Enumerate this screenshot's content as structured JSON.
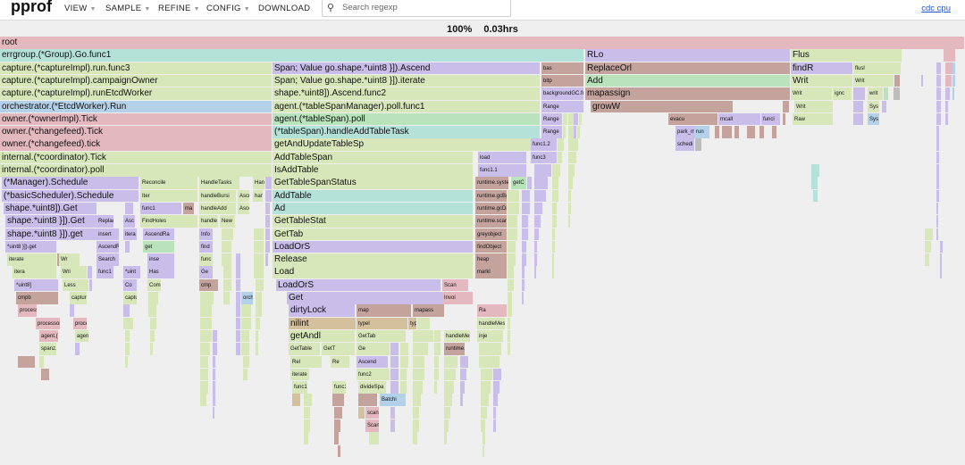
{
  "app": {
    "name": "pprof"
  },
  "menu": [
    {
      "label": "VIEW"
    },
    {
      "label": "SAMPLE"
    },
    {
      "label": "REFINE"
    },
    {
      "label": "CONFIG"
    },
    {
      "label": "DOWNLOAD"
    }
  ],
  "search": {
    "placeholder": "Search regexp"
  },
  "profile_link": "cdc cpu",
  "status": {
    "percent": "100%",
    "time": "0.03hrs"
  },
  "colors": {
    "pink": "#e3b8bf",
    "teal": "#b4e2d9",
    "yellowgreen": "#d7e7b9",
    "blue": "#b3d1e8",
    "purple": "#c9bde9",
    "green": "#b8e3bb",
    "brown": "#c4a39d",
    "tan": "#d4c09d",
    "gray": "#bdbdbd"
  },
  "frames": [
    {
      "label": "root",
      "c": "pink"
    },
    {
      "label": "errgroup.(*Group).Go.func1",
      "c": "teal"
    },
    {
      "label": "capture.(*captureImpl).run.func3",
      "c": "yellowgreen"
    },
    {
      "label": "capture.(*captureImpl).campaignOwner",
      "c": "yellowgreen"
    },
    {
      "label": "capture.(*captureImpl).runEtcdWorker",
      "c": "yellowgreen"
    },
    {
      "label": "orchestrator.(*EtcdWorker).Run",
      "c": "blue"
    },
    {
      "label": "owner.(*ownerImpl).Tick",
      "c": "pink"
    },
    {
      "label": "owner.(*changefeed).Tick",
      "c": "pink"
    },
    {
      "label": "owner.(*changefeed).tick",
      "c": "pink"
    },
    {
      "label": "internal.(*coordinator).Tick",
      "c": "yellowgreen"
    },
    {
      "label": "internal.(*coordinator).poll",
      "c": "yellowgreen"
    },
    {
      "label": "(*Manager).Schedule",
      "c": "purple"
    },
    {
      "label": "Reconcile",
      "c": "yellowgreen"
    },
    {
      "label": "HandleTasks",
      "c": "yellowgreen"
    },
    {
      "label": "Han",
      "c": "yellowgreen"
    },
    {
      "label": "(*basicScheduler).Schedule",
      "c": "purple"
    },
    {
      "label": "Iter",
      "c": "yellowgreen"
    },
    {
      "label": "handleBursi",
      "c": "yellowgreen"
    },
    {
      "label": "Ascr",
      "c": "yellowgreen"
    },
    {
      "label": "han",
      "c": "yellowgreen"
    },
    {
      "label": "shape.*uint8]).Get",
      "c": "purple"
    },
    {
      "label": "func1",
      "c": "purple"
    },
    {
      "label": "ma",
      "c": "brown"
    },
    {
      "label": "handleAdd",
      "c": "yellowgreen"
    },
    {
      "label": "Asce",
      "c": "yellowgreen"
    },
    {
      "label": "shape.*uint8 }]).Get",
      "c": "purple"
    },
    {
      "label": "Replace",
      "c": "purple"
    },
    {
      "label": "Asc",
      "c": "purple"
    },
    {
      "label": "FindHoles",
      "c": "yellowgreen"
    },
    {
      "label": "handle",
      "c": "yellowgreen"
    },
    {
      "label": "New",
      "c": "yellowgreen"
    },
    {
      "label": "shape.*uint8 }]).get",
      "c": "purple"
    },
    {
      "label": "insert",
      "c": "purple"
    },
    {
      "label": "itera",
      "c": "purple"
    },
    {
      "label": "AscendRa",
      "c": "purple"
    },
    {
      "label": "Info",
      "c": "purple"
    },
    {
      "label": "*uint8 }]).get",
      "c": "purple"
    },
    {
      "label": "AscendR",
      "c": "purple"
    },
    {
      "label": "get",
      "c": "green"
    },
    {
      "label": "find",
      "c": "purple"
    },
    {
      "label": "iterate",
      "c": "yellowgreen"
    },
    {
      "label": "Wr",
      "c": "yellowgreen"
    },
    {
      "label": "Search",
      "c": "purple"
    },
    {
      "label": "inse",
      "c": "purple"
    },
    {
      "label": "func",
      "c": "yellowgreen"
    },
    {
      "label": "itera",
      "c": "yellowgreen"
    },
    {
      "label": "Wri",
      "c": "yellowgreen"
    },
    {
      "label": "func1",
      "c": "purple"
    },
    {
      "label": "*uint",
      "c": "purple"
    },
    {
      "label": "Has",
      "c": "purple"
    },
    {
      "label": "Ge",
      "c": "purple"
    },
    {
      "label": "*uint8]",
      "c": "purple"
    },
    {
      "label": "Less",
      "c": "yellowgreen"
    },
    {
      "label": "Co",
      "c": "purple"
    },
    {
      "label": "Comp",
      "c": "yellowgreen"
    },
    {
      "label": "cmp",
      "c": "brown"
    },
    {
      "label": "cmpb",
      "c": "brown"
    },
    {
      "label": "capture.(*captureImpl).run.func4",
      "c": "yellowgreen"
    },
    {
      "label": "capture.(*captureImpl).runEtcdWorker",
      "c": "yellowgreen"
    },
    {
      "label": "orchestrator.(*EtcdWorker).Run",
      "c": "blue"
    },
    {
      "label": "processor.(*managerImpl).Tick",
      "c": "pink"
    },
    {
      "label": "processor.(*processor).Tick",
      "c": "pink"
    },
    {
      "label": "processor.(*processor).tick",
      "c": "pink"
    },
    {
      "label": "agent.(*agent).Tick",
      "c": "pink"
    },
    {
      "label": "agent.(*tableSpanManager).poll",
      "c": "yellowgreen"
    },
    {
      "label": "spanz.(*BtreeMap[go.shape.*uint8]).Ascend",
      "c": "yellowgreen"
    },
    {
      "label": "Span; Value go.shape.*uint8 }]).Ascend",
      "c": "purple"
    },
    {
      "label": "Span; Value go.shape.*uint8 }]).iterate",
      "c": "yellowgreen"
    },
    {
      "label": "shape.*uint8]).Ascend.func2",
      "c": "yellowgreen"
    },
    {
      "label": "agent.(*tableSpanManager).poll.func1",
      "c": "yellowgreen"
    },
    {
      "label": "agent.(*tableSpan).poll",
      "c": "green"
    },
    {
      "label": "(*tableSpan).handleAddTableTask",
      "c": "teal"
    },
    {
      "label": "getAndUpdateTableSp",
      "c": "yellowgreen"
    },
    {
      "label": "AddTableSpan",
      "c": "yellowgreen"
    },
    {
      "label": "IsAddTable",
      "c": "yellowgreen"
    },
    {
      "label": "GetTableSpanStatus",
      "c": "yellowgreen"
    },
    {
      "label": "AddTable",
      "c": "teal"
    },
    {
      "label": "Ad",
      "c": "teal"
    },
    {
      "label": "GetTableStat",
      "c": "yellowgreen"
    },
    {
      "label": "GetTab",
      "c": "yellowgreen"
    },
    {
      "label": "LoadOrS",
      "c": "purple"
    },
    {
      "label": "Release",
      "c": "yellowgreen"
    },
    {
      "label": "Load",
      "c": "yellowgreen"
    },
    {
      "label": "LoadOrS",
      "c": "purple"
    },
    {
      "label": "Get",
      "c": "purple"
    },
    {
      "label": "dirtyLock",
      "c": "purple"
    },
    {
      "label": "map",
      "c": "brown"
    },
    {
      "label": "mapass",
      "c": "brown"
    },
    {
      "label": "nilint",
      "c": "tan"
    },
    {
      "label": "typel",
      "c": "tan"
    },
    {
      "label": "type",
      "c": "tan"
    },
    {
      "label": "getAndl",
      "c": "yellowgreen"
    },
    {
      "label": "GetTab",
      "c": "yellowgreen"
    },
    {
      "label": "GetTable",
      "c": "yellowgreen"
    },
    {
      "label": "GetT",
      "c": "yellowgreen"
    },
    {
      "label": "Ge",
      "c": "yellowgreen"
    },
    {
      "label": "Rel",
      "c": "yellowgreen"
    },
    {
      "label": "Re",
      "c": "yellowgreen"
    },
    {
      "label": "Ascend",
      "c": "purple"
    },
    {
      "label": "iterate",
      "c": "yellowgreen"
    },
    {
      "label": "func2",
      "c": "yellowgreen"
    },
    {
      "label": "func1",
      "c": "yellowgreen"
    },
    {
      "label": "func1",
      "c": "yellowgreen"
    },
    {
      "label": "divideSpa",
      "c": "yellowgreen"
    },
    {
      "label": "Batchi",
      "c": "blue"
    },
    {
      "label": "scanP",
      "c": "pink"
    },
    {
      "label": "Scan",
      "c": "pink"
    },
    {
      "label": "Scan",
      "c": "pink"
    },
    {
      "label": "Invoi",
      "c": "pink"
    },
    {
      "label": "Ra",
      "c": "pink"
    },
    {
      "label": "handleMessage",
      "c": "yellowgreen"
    },
    {
      "label": "handleMes",
      "c": "yellowgreen"
    },
    {
      "label": "inje",
      "c": "yellowgreen"
    },
    {
      "label": "runtime.gcBgMarkWorker",
      "c": "brown"
    },
    {
      "label": "runtime.systemstack",
      "c": "brown"
    },
    {
      "label": "runtime.gcBgMarkWorker.func2",
      "c": "brown"
    },
    {
      "label": "runtime.gcDrain",
      "c": "brown"
    },
    {
      "label": "runtime.scanobject",
      "c": "brown"
    },
    {
      "label": "greyobject",
      "c": "brown"
    },
    {
      "label": "findObject",
      "c": "brown"
    },
    {
      "label": "heap",
      "c": "brown"
    },
    {
      "label": "markl",
      "c": "brown"
    },
    {
      "label": "bas",
      "c": "brown"
    },
    {
      "label": "bitp",
      "c": "brown"
    },
    {
      "label": "backgroundGC.func1",
      "c": "purple"
    },
    {
      "label": "Range",
      "c": "purple"
    },
    {
      "label": "Range",
      "c": "purple"
    },
    {
      "label": "Range",
      "c": "purple"
    },
    {
      "label": "func1.2",
      "c": "purple"
    },
    {
      "label": "func3",
      "c": "purple"
    },
    {
      "label": "load",
      "c": "purple"
    },
    {
      "label": "func1.1",
      "c": "purple"
    },
    {
      "label": "getC",
      "c": "green"
    },
    {
      "label": "RLo",
      "c": "purple"
    },
    {
      "label": "ReplaceOrl",
      "c": "brown"
    },
    {
      "label": "Add",
      "c": "green"
    },
    {
      "label": "mapassign",
      "c": "brown"
    },
    {
      "label": "growW",
      "c": "brown"
    },
    {
      "label": "evacu",
      "c": "brown"
    },
    {
      "label": "mcall",
      "c": "purple"
    },
    {
      "label": "funcl",
      "c": "purple"
    },
    {
      "label": "park_m",
      "c": "purple"
    },
    {
      "label": "run",
      "c": "blue"
    },
    {
      "label": "schedi",
      "c": "purple"
    },
    {
      "label": "Flus",
      "c": "yellowgreen"
    },
    {
      "label": "findR",
      "c": "purple"
    },
    {
      "label": "flusl",
      "c": "yellowgreen"
    },
    {
      "label": "Writ",
      "c": "yellowgreen"
    },
    {
      "label": "Writ",
      "c": "yellowgreen"
    },
    {
      "label": "Writ",
      "c": "yellowgreen"
    },
    {
      "label": "ignc",
      "c": "yellowgreen"
    },
    {
      "label": "Writ",
      "c": "yellowgreen"
    },
    {
      "label": "writ",
      "c": "yellowgreen"
    },
    {
      "label": "Sys",
      "c": "yellowgreen"
    },
    {
      "label": "Raw",
      "c": "yellowgreen"
    },
    {
      "label": "Sys",
      "c": "blue"
    }
  ]
}
